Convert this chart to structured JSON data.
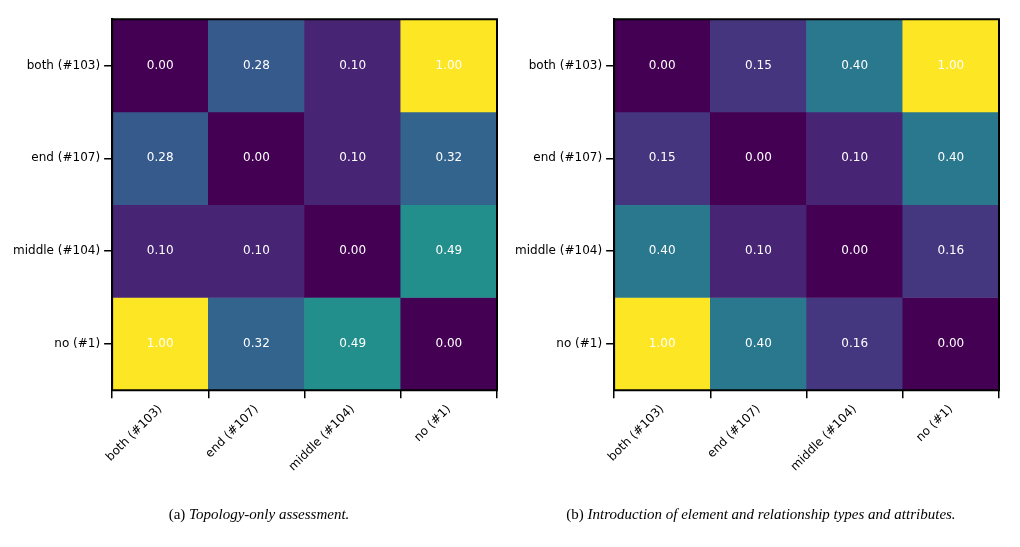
{
  "chart_data": [
    {
      "type": "heatmap",
      "categories": [
        "both (#103)",
        "end (#107)",
        "middle (#104)",
        "no (#1)"
      ],
      "y_categories": [
        "both (#103)",
        "end (#107)",
        "middle (#104)",
        "no (#1)"
      ],
      "cells": [
        [
          0.0,
          0.28,
          0.1,
          1.0
        ],
        [
          0.28,
          0.0,
          0.1,
          0.32
        ],
        [
          0.1,
          0.1,
          0.0,
          0.49
        ],
        [
          1.0,
          0.32,
          0.49,
          0.0
        ]
      ],
      "cell_labels": [
        [
          "0.00",
          "0.28",
          "0.10",
          "1.00"
        ],
        [
          "0.28",
          "0.00",
          "0.10",
          "0.32"
        ],
        [
          "0.10",
          "0.10",
          "0.00",
          "0.49"
        ],
        [
          "1.00",
          "0.32",
          "0.49",
          "0.00"
        ]
      ],
      "data_labels": true,
      "annotations": [
        "(a) Topology-only assessment."
      ]
    },
    {
      "type": "heatmap",
      "categories": [
        "both (#103)",
        "end (#107)",
        "middle (#104)",
        "no (#1)"
      ],
      "y_categories": [
        "both (#103)",
        "end (#107)",
        "middle (#104)",
        "no (#1)"
      ],
      "cells": [
        [
          0.0,
          0.15,
          0.4,
          1.0
        ],
        [
          0.15,
          0.0,
          0.1,
          0.4
        ],
        [
          0.4,
          0.1,
          0.0,
          0.16
        ],
        [
          1.0,
          0.4,
          0.16,
          0.0
        ]
      ],
      "cell_labels": [
        [
          "0.00",
          "0.15",
          "0.40",
          "1.00"
        ],
        [
          "0.15",
          "0.00",
          "0.10",
          "0.40"
        ],
        [
          "0.40",
          "0.10",
          "0.00",
          "0.16"
        ],
        [
          "1.00",
          "0.40",
          "0.16",
          "0.00"
        ]
      ],
      "data_labels": true,
      "annotations": [
        "(b) Introduction of element and relationship types and attributes."
      ]
    }
  ]
}
